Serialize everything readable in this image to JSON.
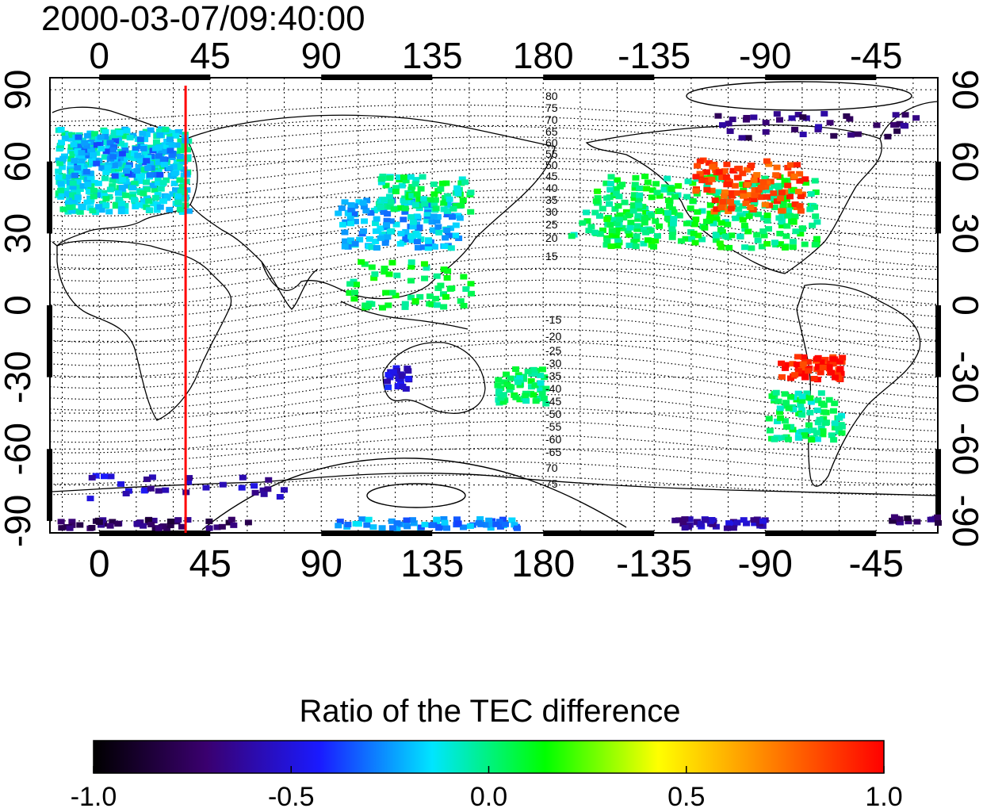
{
  "title": "2000-03-07/09:40:00",
  "colorbar": {
    "label": "Ratio of the TEC difference",
    "ticks": [
      "-1.0",
      "-0.5",
      "0.0",
      "0.5",
      "1.0"
    ],
    "stops": [
      "#000000",
      "#3a006f",
      "#1a1aff",
      "#00e5ff",
      "#00ff00",
      "#ffff00",
      "#ff8000",
      "#ff0000"
    ]
  },
  "map": {
    "lon_top_labels": [
      "0",
      "45",
      "90",
      "135",
      "180",
      "-135",
      "-90",
      "-45"
    ],
    "lon_bottom_labels": [
      "0",
      "45",
      "90",
      "135",
      "180",
      "-135",
      "-90",
      "-45"
    ],
    "lat_left_labels": [
      "90",
      "60",
      "30",
      "0",
      "-30",
      "-60",
      "-90"
    ],
    "lat_right_labels": [
      "90",
      "60",
      "30",
      "0",
      "-30",
      "-60",
      "-90"
    ],
    "contour_labels_north": [
      "80",
      "75",
      "70",
      "65",
      "60",
      "55",
      "50",
      "45",
      "40",
      "35",
      "30",
      "25",
      "20",
      "15"
    ],
    "contour_labels_south": [
      "-15",
      "-20",
      "-25",
      "-30",
      "-35",
      "-40",
      "-45",
      "-50",
      "-55",
      "-60",
      "-65",
      "70",
      "75"
    ],
    "terminator_longitude": 35,
    "terminator_color": "#ff0000",
    "lon_range": [
      -20,
      340
    ],
    "lat_range": [
      -95,
      95
    ]
  }
}
